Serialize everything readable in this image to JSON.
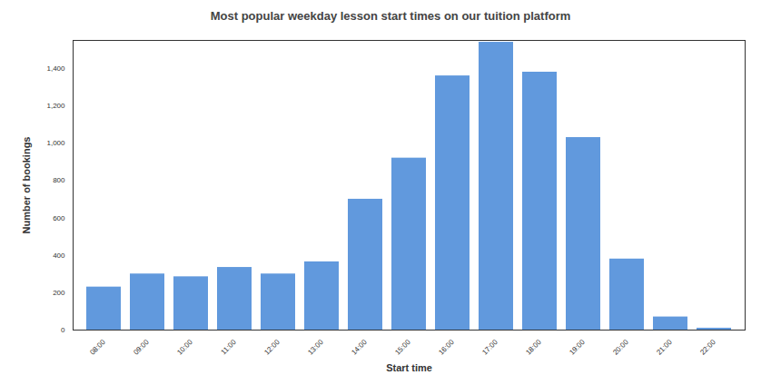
{
  "chart_data": {
    "type": "bar",
    "title": "Most popular weekday lesson start times on our tuition platform",
    "x_label": "Start time",
    "y_label": "Number of bookings",
    "categories": [
      "08:00",
      "09:00",
      "10:00",
      "11:00",
      "12:00",
      "13:00",
      "14:00",
      "15:00",
      "16:00",
      "17:00",
      "18:00",
      "19:00",
      "20:00",
      "21:00",
      "22:00"
    ],
    "values": [
      230,
      300,
      285,
      335,
      300,
      365,
      700,
      920,
      1360,
      1540,
      1380,
      1030,
      380,
      70,
      10
    ],
    "color": "#6199dd",
    "ylim": [
      0,
      1550
    ],
    "yticks": [
      0,
      200,
      400,
      600,
      800,
      {
        "value": 1000,
        "label": "1,000"
      },
      {
        "value": 1200,
        "label": "1,200"
      },
      {
        "value": 1400,
        "label": "1,400"
      }
    ],
    "grid": false
  }
}
